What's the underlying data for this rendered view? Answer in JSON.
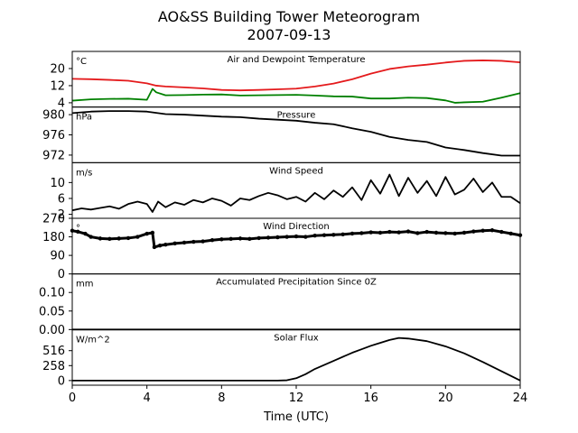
{
  "figure": {
    "title_line1": "AO&SS Building Tower Meteorogram",
    "title_line2": "2007-09-13",
    "xlabel": "Time (UTC)"
  },
  "chart_data": [
    {
      "type": "line",
      "title": "Air and Dewpoint Temperature",
      "unit": "°C",
      "xlim": [
        0,
        24
      ],
      "ylim": [
        2,
        28
      ],
      "yticks": [
        "4",
        "12",
        "20"
      ],
      "ytick_values": [
        4,
        12,
        20
      ],
      "series": [
        {
          "color": "#e41a1c",
          "x": [
            0,
            1,
            2,
            3,
            4,
            4.5,
            5,
            6,
            7,
            8,
            9,
            10,
            11,
            12,
            13,
            14,
            15,
            16,
            17,
            18,
            19,
            20,
            21,
            22,
            23,
            24
          ],
          "y": [
            15.2,
            15.0,
            14.7,
            14.3,
            13.1,
            12.0,
            11.6,
            11.2,
            10.7,
            10.0,
            9.8,
            10.0,
            10.3,
            10.6,
            11.6,
            13.0,
            15.0,
            17.6,
            19.8,
            21.0,
            21.8,
            22.8,
            23.6,
            23.8,
            23.6,
            22.9
          ]
        },
        {
          "color": "#008000",
          "x": [
            0,
            1,
            2,
            3,
            4,
            4.3,
            4.5,
            5,
            6,
            7,
            8,
            9,
            10,
            11,
            12,
            13,
            14,
            15,
            16,
            17,
            18,
            19,
            20,
            20.5,
            21,
            22,
            23,
            24
          ],
          "y": [
            5.0,
            5.6,
            5.8,
            5.9,
            5.4,
            10.5,
            8.9,
            7.5,
            7.6,
            7.8,
            7.9,
            7.4,
            7.5,
            7.6,
            7.7,
            7.4,
            7.0,
            6.9,
            6.0,
            6.0,
            6.4,
            6.2,
            5.1,
            4.0,
            4.2,
            4.5,
            6.4,
            8.5
          ]
        }
      ]
    },
    {
      "type": "line",
      "title": "Pressure",
      "unit": "hPa",
      "xlim": [
        0,
        24
      ],
      "ylim": [
        970.5,
        981.5
      ],
      "yticks": [
        "972",
        "976",
        "980"
      ],
      "ytick_values": [
        972,
        976,
        980
      ],
      "series": [
        {
          "color": "#000000",
          "x": [
            0,
            1,
            2,
            3,
            4,
            5,
            6,
            7,
            8,
            9,
            10,
            11,
            12,
            13,
            14,
            15,
            16,
            17,
            18,
            19,
            20,
            21,
            22,
            23,
            24
          ],
          "y": [
            980.3,
            980.6,
            980.7,
            980.7,
            980.6,
            980.1,
            980.0,
            979.8,
            979.6,
            979.5,
            979.2,
            979.0,
            978.8,
            978.4,
            978.1,
            977.3,
            976.6,
            975.6,
            975.0,
            974.6,
            973.5,
            973.0,
            972.4,
            971.9,
            971.9
          ]
        }
      ]
    },
    {
      "type": "line",
      "title": "Wind Speed",
      "unit": "m/s",
      "xlim": [
        0,
        24
      ],
      "ylim": [
        1,
        15
      ],
      "yticks": [
        "2",
        "6",
        "10"
      ],
      "ytick_values": [
        2,
        6,
        10
      ],
      "series": [
        {
          "color": "#000000",
          "x": [
            0,
            0.5,
            1,
            1.5,
            2,
            2.5,
            3,
            3.5,
            4,
            4.3,
            4.6,
            5,
            5.5,
            6,
            6.5,
            7,
            7.5,
            8,
            8.5,
            9,
            9.5,
            10,
            10.5,
            11,
            11.5,
            12,
            12.5,
            13,
            13.5,
            14,
            14.5,
            15,
            15.5,
            16,
            16.5,
            17,
            17.5,
            18,
            18.5,
            19,
            19.5,
            20,
            20.5,
            21,
            21.5,
            22,
            22.5,
            23,
            23.5,
            24
          ],
          "y": [
            3.0,
            3.5,
            3.2,
            3.6,
            4.0,
            3.4,
            4.6,
            5.2,
            4.6,
            2.6,
            5.2,
            3.8,
            5.0,
            4.4,
            5.6,
            5.0,
            6.0,
            5.4,
            4.2,
            6.0,
            5.6,
            6.6,
            7.4,
            6.8,
            5.8,
            6.4,
            5.2,
            7.4,
            5.8,
            8.0,
            6.4,
            8.8,
            5.6,
            10.6,
            7.2,
            12.0,
            6.6,
            11.2,
            7.4,
            10.4,
            6.6,
            11.4,
            7.0,
            8.2,
            11.0,
            7.6,
            10.0,
            6.4,
            6.4,
            4.8
          ]
        }
      ]
    },
    {
      "type": "scatter",
      "title": "Wind Direction",
      "unit": "°",
      "xlim": [
        0,
        24
      ],
      "ylim": [
        0,
        270
      ],
      "yticks": [
        "0",
        "90",
        "180",
        "270"
      ],
      "ytick_values": [
        0,
        90,
        180,
        270
      ],
      "series": [
        {
          "color": "#000000",
          "x": [
            0,
            0.3,
            0.7,
            1,
            1.5,
            2,
            2.5,
            3,
            3.5,
            4,
            4.3,
            4.4,
            4.7,
            5,
            5.5,
            6,
            6.5,
            7,
            7.5,
            8,
            8.5,
            9,
            9.5,
            10,
            10.5,
            11,
            11.5,
            12,
            12.5,
            13,
            13.5,
            14,
            14.5,
            15,
            15.5,
            16,
            16.5,
            17,
            17.5,
            18,
            18.5,
            19,
            19.5,
            20,
            20.5,
            21,
            21.5,
            22,
            22.5,
            23,
            23.5,
            24
          ],
          "y": [
            210,
            205,
            195,
            180,
            172,
            170,
            172,
            174,
            180,
            195,
            200,
            130,
            138,
            142,
            148,
            152,
            156,
            158,
            164,
            168,
            170,
            172,
            170,
            174,
            176,
            178,
            180,
            182,
            180,
            186,
            188,
            190,
            192,
            196,
            198,
            202,
            200,
            204,
            202,
            206,
            198,
            204,
            200,
            198,
            196,
            200,
            206,
            210,
            212,
            204,
            196,
            188
          ]
        }
      ]
    },
    {
      "type": "line",
      "title": "Accumulated Precipitation Since 0Z",
      "unit": "mm",
      "xlim": [
        0,
        24
      ],
      "ylim": [
        0,
        0.15
      ],
      "yticks": [
        "0.00",
        "0.05",
        "0.10"
      ],
      "ytick_values": [
        0,
        0.05,
        0.1
      ],
      "series": [
        {
          "color": "#000000",
          "x": [
            0,
            24
          ],
          "y": [
            0,
            0
          ]
        }
      ]
    },
    {
      "type": "line",
      "title": "Solar Flux",
      "unit": "W/m^2",
      "xlim": [
        0,
        24
      ],
      "ylim": [
        -80,
        880
      ],
      "yticks": [
        "0",
        "258",
        "516"
      ],
      "ytick_values": [
        0,
        258,
        516
      ],
      "series": [
        {
          "color": "#000000",
          "x": [
            0,
            2,
            4,
            6,
            8,
            10,
            11,
            11.5,
            12,
            12.5,
            13,
            14,
            15,
            15.5,
            16,
            17,
            17.5,
            18,
            19,
            20,
            21,
            22,
            23,
            23.5,
            24
          ],
          "y": [
            0,
            0,
            0,
            0,
            0,
            0,
            0,
            5,
            40,
            110,
            200,
            340,
            480,
            540,
            600,
            700,
            735,
            725,
            680,
            590,
            470,
            320,
            160,
            80,
            0
          ]
        }
      ]
    }
  ]
}
